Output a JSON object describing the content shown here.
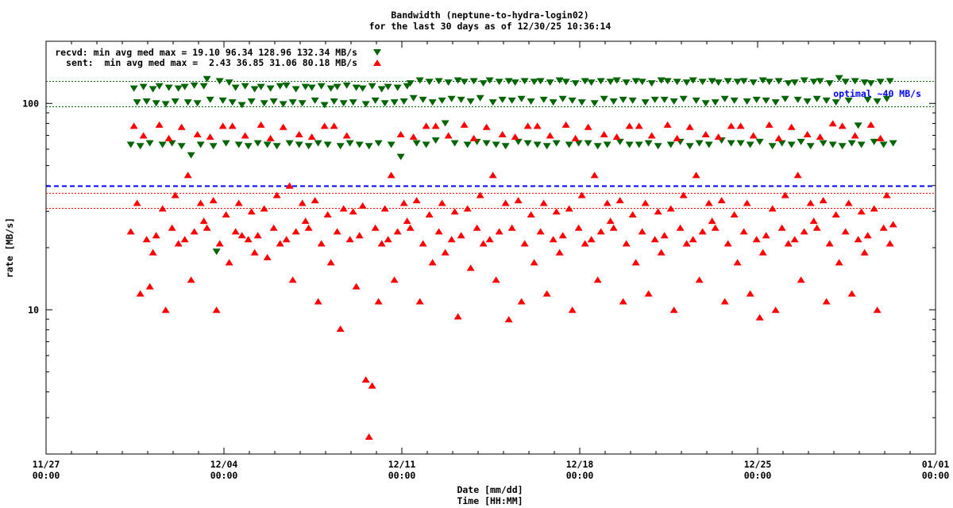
{
  "chart_data": {
    "type": "scatter",
    "title": [
      "Bandwidth (neptune-to-hydra-login02)",
      "for the last 30 days as of 12/30/25 10:36:14"
    ],
    "xlabel": [
      "Date [mm/dd]",
      "Time [HH:MM]"
    ],
    "ylabel": "rate [MB/s]",
    "yscale": "log",
    "ylim": [
      2,
      200
    ],
    "xlim_days_from_11_27": [
      0,
      35
    ],
    "x_ticks": [
      {
        "day": 0,
        "label": [
          "11/27",
          "00:00"
        ]
      },
      {
        "day": 7,
        "label": [
          "12/04",
          "00:00"
        ]
      },
      {
        "day": 14,
        "label": [
          "12/11",
          "00:00"
        ]
      },
      {
        "day": 21,
        "label": [
          "12/18",
          "00:00"
        ]
      },
      {
        "day": 28,
        "label": [
          "12/25",
          "00:00"
        ]
      },
      {
        "day": 35,
        "label": [
          "01/01",
          "00:00"
        ]
      }
    ],
    "y_ticks": [
      {
        "value": 10,
        "label": "10"
      },
      {
        "value": 100,
        "label": "100"
      }
    ],
    "grid": false,
    "legend_placement": "top-left",
    "colors": {
      "recvd": "#006400",
      "sent": "#ff0000",
      "optimal": "#0000ff"
    },
    "reference_lines": [
      {
        "name": "recvd-median",
        "value": 128.96,
        "color": "#006400",
        "style": "dotted"
      },
      {
        "name": "recvd-average",
        "value": 96.34,
        "color": "#006400",
        "style": "dotted"
      },
      {
        "name": "sent-average",
        "value": 36.85,
        "color": "#ff0000",
        "style": "dotted"
      },
      {
        "name": "sent-median",
        "value": 31.06,
        "color": "#ff0000",
        "style": "dotted"
      },
      {
        "name": "optimal",
        "value": 40,
        "color": "#0000ff",
        "style": "dashed"
      }
    ],
    "annotation": "optimal ~40 MB/s",
    "series": [
      {
        "name": "recvd",
        "legend": "recvd: min avg med max = 19.10 96.34 128.96 132.34 MB/s",
        "marker": "triangle-down",
        "x_start_day": 3.333,
        "x_step_hours": 3,
        "y": [
          63,
          118,
          101,
          62,
          120,
          102,
          64,
          117,
          100,
          121,
          63,
          99,
          119,
          64,
          102,
          118,
          62,
          120,
          101,
          56,
          122,
          100,
          63,
          121,
          131,
          104,
          62,
          19.1,
          128,
          103,
          64,
          126,
          101,
          119,
          63,
          98,
          121,
          62,
          102,
          117,
          64,
          120,
          100,
          63,
          118,
          102,
          62,
          121,
          99,
          122,
          64,
          101,
          117,
          63,
          100,
          120,
          62,
          119,
          103,
          64,
          121,
          98,
          63,
          118,
          102,
          120,
          62,
          100,
          122,
          64,
          101,
          119,
          63,
          118,
          99,
          62,
          121,
          103,
          64,
          117,
          100,
          120,
          63,
          101,
          119,
          55,
          102,
          121,
          125,
          106,
          64,
          129,
          104,
          63,
          127,
          101,
          66,
          128,
          103,
          80,
          126,
          105,
          64,
          129,
          104,
          127,
          63,
          102,
          128,
          65,
          106,
          125,
          64,
          129,
          101,
          63,
          127,
          104,
          62,
          128,
          103,
          126,
          65,
          105,
          128,
          64,
          102,
          127,
          63,
          128,
          104,
          62,
          126,
          101,
          64,
          129,
          105,
          127,
          63,
          103,
          125,
          64,
          101,
          128,
          64,
          126,
          100,
          62,
          128,
          105,
          63,
          127,
          102,
          129,
          65,
          104,
          126,
          63,
          103,
          128,
          63,
          127,
          101,
          64,
          125,
          104,
          62,
          129,
          104,
          128,
          63,
          102,
          127,
          65,
          105,
          126,
          62,
          129,
          103,
          64,
          127,
          100,
          63,
          128,
          101,
          126,
          66,
          105,
          128,
          64,
          103,
          127,
          64,
          128,
          102,
          63,
          126,
          104,
          65,
          129,
          103,
          127,
          62,
          101,
          128,
          64,
          105,
          125,
          63,
          126,
          104,
          65,
          129,
          102,
          62,
          127,
          105,
          128,
          64,
          103,
          125,
          63,
          101,
          132.34,
          62,
          127,
          103,
          64,
          128,
          78,
          63,
          126,
          104,
          125,
          65,
          102,
          127,
          63,
          105,
          128,
          64
        ]
      },
      {
        "name": "sent",
        "legend": "sent:  min avg med max =  2.43 36.85 31.06 80.18 MB/s",
        "marker": "triangle-up",
        "x_start_day": 3.333,
        "x_step_hours": 3,
        "y": [
          24,
          78,
          33,
          12,
          70,
          22,
          13,
          19,
          23,
          79,
          31,
          10,
          68,
          25,
          36,
          21,
          77,
          22,
          45,
          14,
          24,
          71,
          33,
          27,
          25,
          69,
          34,
          10,
          21,
          78,
          29,
          17,
          78,
          24,
          33,
          23,
          70,
          22,
          30,
          19,
          23,
          79,
          31,
          18,
          68,
          25,
          36,
          21,
          77,
          22,
          40,
          14,
          24,
          71,
          33,
          27,
          25,
          69,
          34,
          11,
          21,
          78,
          29,
          17,
          78,
          24,
          8.1,
          31,
          70,
          22,
          30,
          13,
          23,
          32,
          4.6,
          2.43,
          4.3,
          25,
          11,
          21,
          31,
          22,
          45,
          14,
          24,
          71,
          33,
          27,
          25,
          69,
          34,
          11,
          21,
          78,
          29,
          17,
          78,
          24,
          33,
          19,
          70,
          22,
          30,
          9.3,
          23,
          79,
          31,
          16,
          68,
          25,
          36,
          21,
          77,
          22,
          45,
          14,
          24,
          71,
          33,
          9,
          25,
          69,
          34,
          11,
          21,
          78,
          29,
          17,
          78,
          24,
          33,
          12,
          70,
          22,
          30,
          19,
          23,
          79,
          31,
          10,
          68,
          25,
          36,
          21,
          77,
          22,
          45,
          14,
          24,
          71,
          33,
          27,
          25,
          69,
          34,
          11,
          21,
          78,
          29,
          17,
          78,
          24,
          33,
          12,
          70,
          22,
          30,
          19,
          23,
          79,
          31,
          10,
          68,
          25,
          36,
          21,
          77,
          22,
          45,
          14,
          24,
          71,
          33,
          27,
          25,
          69,
          34,
          11,
          21,
          78,
          29,
          17,
          78,
          24,
          33,
          12,
          70,
          22,
          9.2,
          19,
          23,
          79,
          31,
          10,
          68,
          25,
          36,
          21,
          77,
          22,
          45,
          14,
          24,
          71,
          33,
          27,
          25,
          69,
          34,
          11,
          21,
          80.18,
          29,
          17,
          78,
          24,
          33,
          12,
          70,
          22,
          30,
          19,
          23,
          79,
          31,
          10,
          68,
          25,
          36,
          21,
          26
        ]
      }
    ]
  }
}
